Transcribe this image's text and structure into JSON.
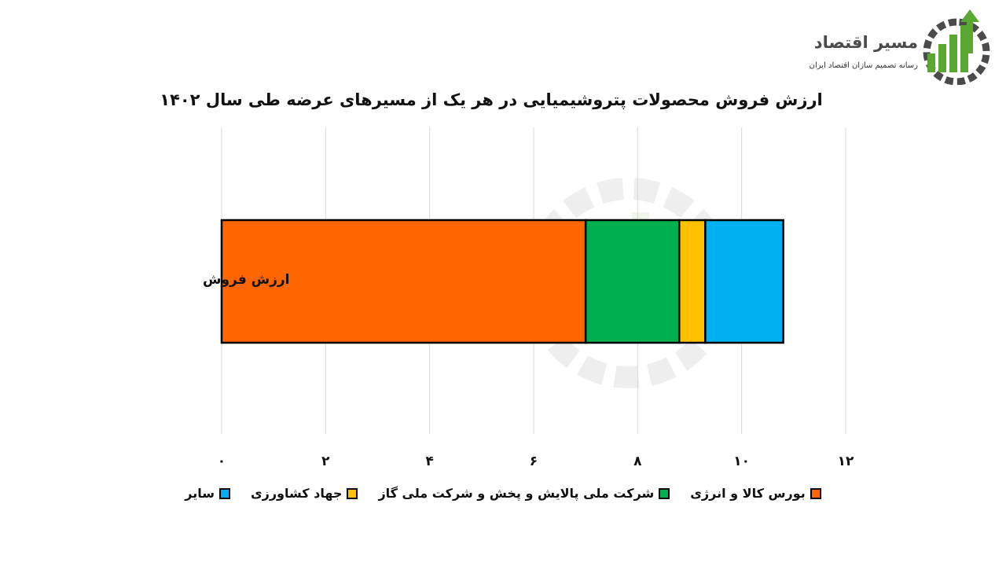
{
  "brand": {
    "name": "مسیر اقتصاد",
    "tagline": "رسانه تصمیم سازان اقتصاد ایران",
    "color_primary": "#5aa832",
    "color_dark": "#4b4b4b"
  },
  "chart_data": {
    "type": "bar",
    "orientation": "horizontal",
    "stacked": true,
    "title": "ارزش فروش محصولات پتروشیمیایی در هر یک از مسیرهای عرضه طی سال ۱۴۰۲",
    "categories": [
      "ارزش فروش"
    ],
    "xlim": [
      0,
      12
    ],
    "x_ticks": [
      0,
      2,
      4,
      6,
      8,
      10,
      12
    ],
    "x_tick_labels": [
      "۰",
      "۲",
      "۴",
      "۶",
      "۸",
      "۱۰",
      "۱۲"
    ],
    "grid": true,
    "legend_position": "bottom",
    "series": [
      {
        "name": "بورس کالا و انرژی",
        "values": [
          7.0
        ],
        "color": "#ff6600"
      },
      {
        "name": "شرکت ملی پالایش و پخش و شرکت ملی گاز",
        "values": [
          1.8
        ],
        "color": "#00b050"
      },
      {
        "name": "جهاد کشاورزی",
        "values": [
          0.5
        ],
        "color": "#ffc000"
      },
      {
        "name": "سایر",
        "values": [
          1.5
        ],
        "color": "#00b0f0"
      }
    ]
  }
}
